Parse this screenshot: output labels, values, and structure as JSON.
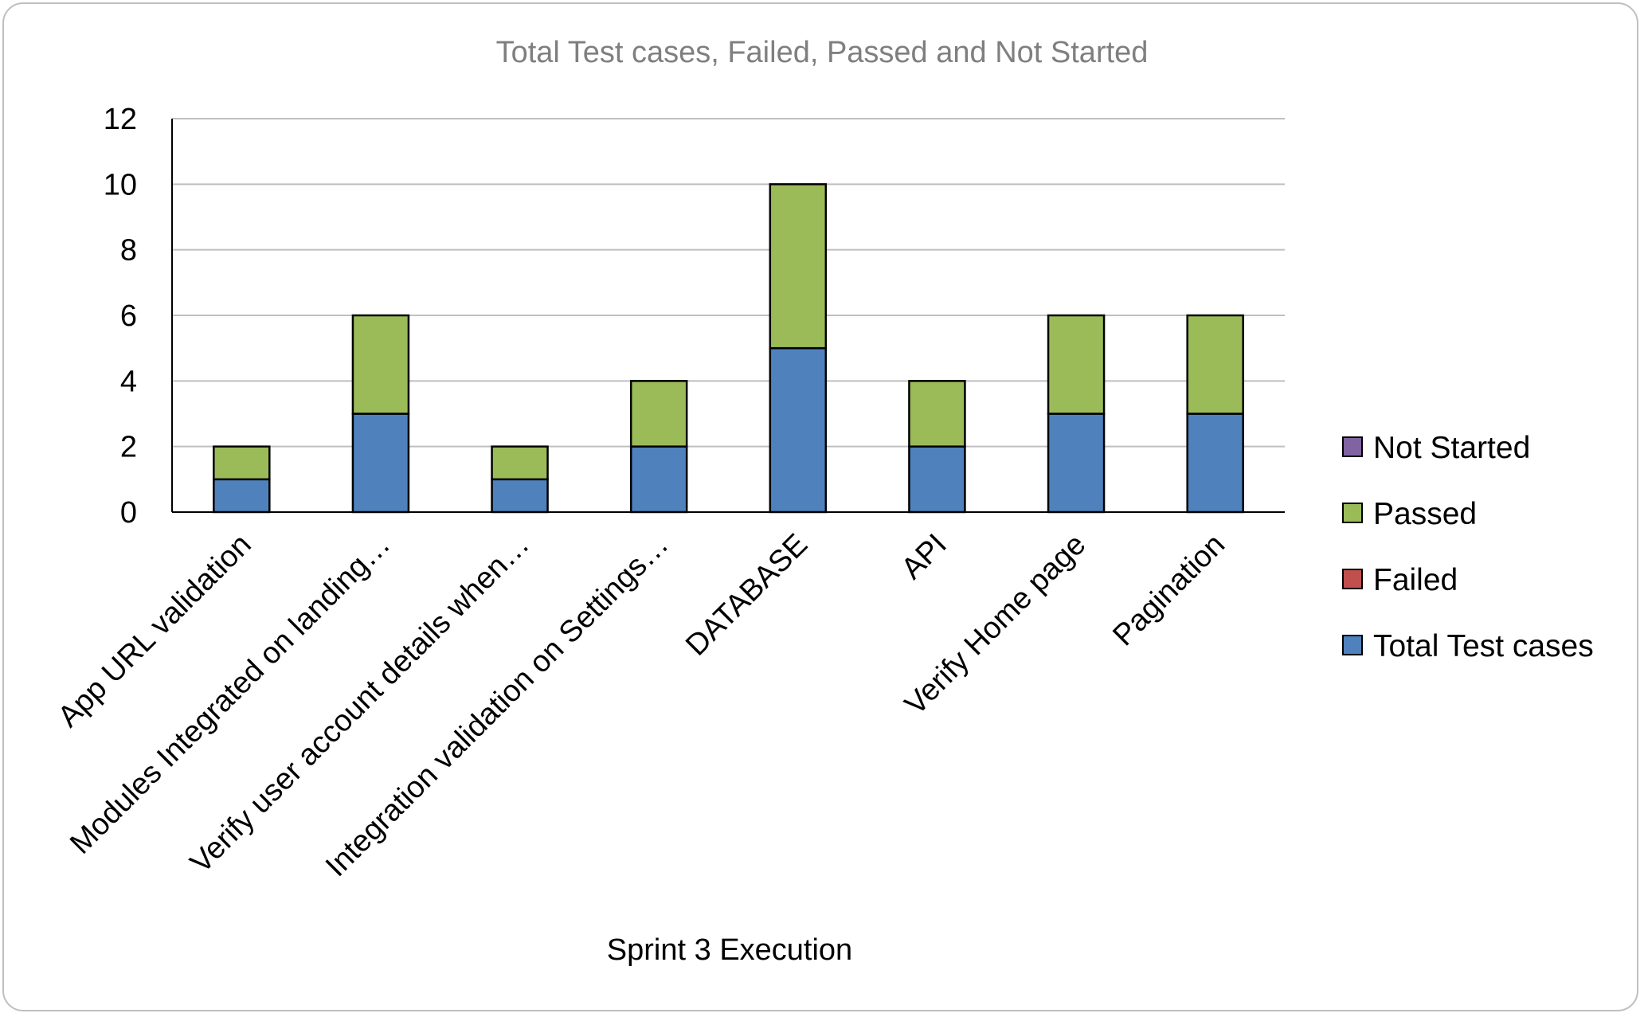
{
  "chart_data": {
    "type": "bar",
    "stacked": true,
    "title": "Total Test cases, Failed, Passed and Not Started",
    "xlabel": "Sprint 3 Execution",
    "ylabel": "",
    "ylim": [
      0,
      12
    ],
    "yticks": [
      0,
      2,
      4,
      6,
      8,
      10,
      12
    ],
    "grid": true,
    "legend_position": "right",
    "categories": [
      "App URL validation",
      "Modules Integrated on landing…",
      "Verify user account details when…",
      "Integration validation on Settings…",
      "DATABASE",
      "API",
      "Verify Home page",
      "Pagination"
    ],
    "series": [
      {
        "name": "Total Test cases",
        "color": "#4f81bd",
        "values": [
          1,
          3,
          1,
          2,
          5,
          2,
          3,
          3
        ]
      },
      {
        "name": "Failed",
        "color": "#c0504d",
        "values": [
          0,
          0,
          0,
          0,
          0,
          0,
          0,
          0
        ]
      },
      {
        "name": "Passed",
        "color": "#9bbb59",
        "values": [
          1,
          3,
          1,
          2,
          5,
          2,
          3,
          3
        ]
      },
      {
        "name": "Not Started",
        "color": "#8064a2",
        "values": [
          0,
          0,
          0,
          0,
          0,
          0,
          0,
          0
        ]
      }
    ],
    "legend_order": [
      "Not Started",
      "Passed",
      "Failed",
      "Total Test cases"
    ]
  }
}
